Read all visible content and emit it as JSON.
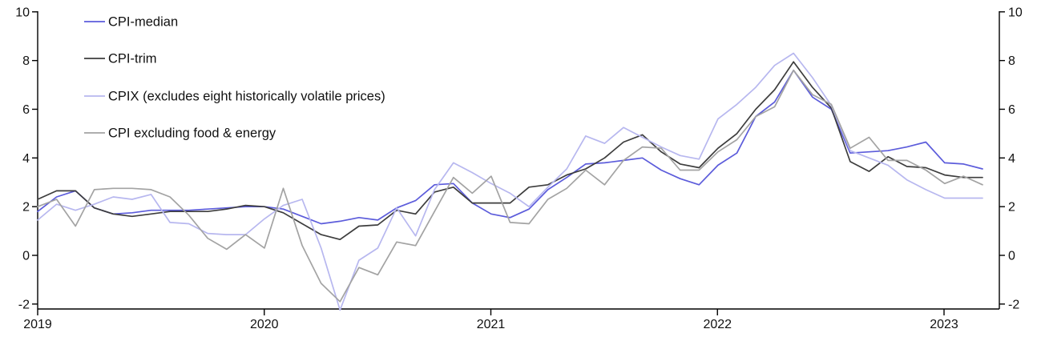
{
  "chart_data": {
    "type": "line",
    "title": "",
    "xlabel": "",
    "ylabel": "",
    "grid": false,
    "legend_position": "top-left",
    "ylim": [
      -2.2,
      10
    ],
    "y_ticks": [
      10,
      8,
      6,
      4,
      2,
      0,
      -2
    ],
    "y_tick_labels": [
      "10",
      "8",
      "6",
      "4",
      "2",
      "0",
      "-2"
    ],
    "x_tick_labels": [
      "2019",
      "2020",
      "2021",
      "2022",
      "2023"
    ],
    "dual_y_axis": true,
    "axis_color": "#000000",
    "x": [
      "2019-01",
      "2019-02",
      "2019-03",
      "2019-04",
      "2019-05",
      "2019-06",
      "2019-07",
      "2019-08",
      "2019-09",
      "2019-10",
      "2019-11",
      "2019-12",
      "2020-01",
      "2020-02",
      "2020-03",
      "2020-04",
      "2020-05",
      "2020-06",
      "2020-07",
      "2020-08",
      "2020-09",
      "2020-10",
      "2020-11",
      "2020-12",
      "2021-01",
      "2021-02",
      "2021-03",
      "2021-04",
      "2021-05",
      "2021-06",
      "2021-07",
      "2021-08",
      "2021-09",
      "2021-10",
      "2021-11",
      "2021-12",
      "2022-01",
      "2022-02",
      "2022-03",
      "2022-04",
      "2022-05",
      "2022-06",
      "2022-07",
      "2022-08",
      "2022-09",
      "2022-10",
      "2022-11",
      "2022-12",
      "2023-01",
      "2023-02",
      "2023-03"
    ],
    "series": [
      {
        "name": "CPI-median",
        "color": "#5c5cdb",
        "values": [
          1.8,
          2.4,
          2.65,
          1.95,
          1.7,
          1.75,
          1.85,
          1.85,
          1.85,
          1.9,
          1.95,
          2.0,
          2.0,
          1.9,
          1.6,
          1.3,
          1.4,
          1.55,
          1.45,
          1.95,
          2.25,
          2.9,
          2.95,
          2.15,
          1.7,
          1.55,
          1.9,
          2.7,
          3.2,
          3.75,
          3.8,
          3.9,
          4.0,
          3.5,
          3.15,
          2.9,
          3.7,
          4.2,
          5.7,
          6.3,
          7.6,
          6.5,
          6.0,
          4.2,
          4.25,
          4.3,
          4.45,
          4.65,
          3.8,
          3.75,
          3.55
        ]
      },
      {
        "name": "CPI-trim",
        "color": "#3d3d3d",
        "values": [
          2.3,
          2.65,
          2.65,
          1.95,
          1.7,
          1.6,
          1.7,
          1.8,
          1.8,
          1.8,
          1.9,
          2.05,
          2.0,
          1.75,
          1.3,
          0.85,
          0.65,
          1.2,
          1.25,
          1.85,
          1.7,
          2.6,
          2.8,
          2.15,
          2.15,
          2.15,
          2.8,
          2.9,
          3.3,
          3.55,
          4.0,
          4.65,
          4.95,
          4.25,
          3.75,
          3.6,
          4.4,
          5.0,
          6.0,
          6.8,
          7.95,
          6.9,
          6.05,
          3.85,
          3.45,
          4.05,
          3.65,
          3.6,
          3.3,
          3.2,
          3.2
        ]
      },
      {
        "name": "CPIX (excludes eight historically volatile prices)",
        "color": "#b7b7ef",
        "values": [
          1.45,
          2.1,
          1.85,
          2.1,
          2.4,
          2.3,
          2.5,
          1.35,
          1.3,
          0.9,
          0.85,
          0.85,
          1.5,
          2.05,
          2.3,
          0.3,
          -2.25,
          -0.2,
          0.3,
          1.95,
          0.8,
          2.7,
          3.8,
          3.4,
          2.95,
          2.55,
          2.0,
          2.8,
          3.55,
          4.9,
          4.6,
          5.25,
          4.85,
          4.45,
          4.1,
          3.95,
          5.6,
          6.2,
          6.9,
          7.8,
          8.3,
          7.3,
          6.15,
          4.3,
          4.0,
          3.7,
          3.1,
          2.7,
          2.35,
          2.35,
          2.35
        ]
      },
      {
        "name": "CPI excluding food & energy",
        "color": "#a3a3a3",
        "values": [
          2.0,
          2.3,
          1.2,
          2.7,
          2.75,
          2.75,
          2.7,
          2.4,
          1.65,
          0.7,
          0.25,
          0.85,
          0.3,
          2.75,
          0.4,
          -1.15,
          -1.9,
          -0.5,
          -0.8,
          0.55,
          0.4,
          1.8,
          3.2,
          2.55,
          3.25,
          1.35,
          1.3,
          2.3,
          2.75,
          3.5,
          2.9,
          3.9,
          4.45,
          4.4,
          3.5,
          3.5,
          4.25,
          4.75,
          5.7,
          6.1,
          7.6,
          6.6,
          6.2,
          4.4,
          4.85,
          3.9,
          3.9,
          3.5,
          2.95,
          3.25,
          2.9
        ]
      }
    ]
  }
}
